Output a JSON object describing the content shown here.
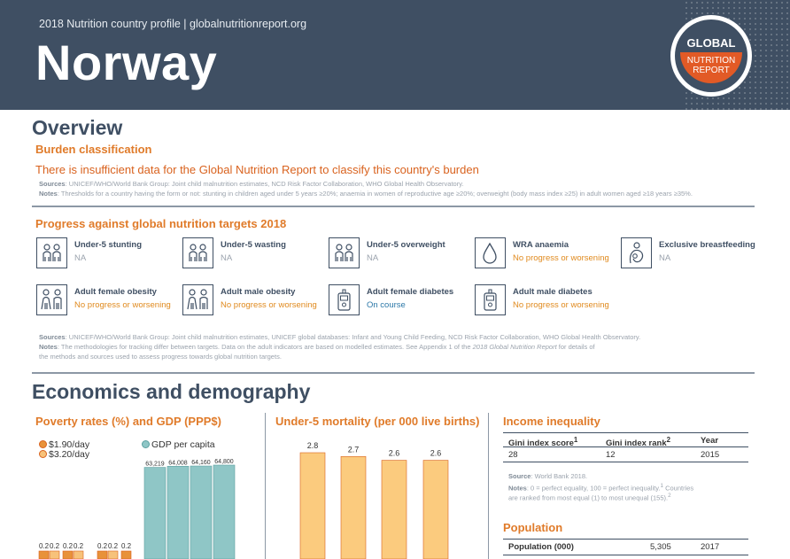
{
  "header": {
    "subtitle": "2018 Nutrition country profile  |  globalnutritionreport.org",
    "country": "Norway",
    "logo_top": "GLOBAL",
    "logo_mid": "NUTRITION",
    "logo_bot": "REPORT"
  },
  "overview": {
    "heading": "Overview",
    "burden_title": "Burden classification",
    "burden_text": "There is insufficient data for the Global Nutrition Report to classify this country's burden",
    "sources_label": "Sources",
    "sources_text": ": UNICEF/WHO/World Bank Group: Joint child malnutrition estimates, NCD Risk Factor Collaboration, WHO Global Health Observatory.",
    "notes_label": "Notes",
    "notes_text": ": Thresholds for a country having the form or not: stunting in children aged under 5 years ≥20%; anaemia in women of reproductive age ≥20%; overweight (body mass index ≥25) in adult women aged ≥18 years ≥35%."
  },
  "progress": {
    "title": "Progress against global nutrition targets 2018",
    "targets": [
      {
        "title": "Under-5 stunting",
        "status": "NA",
        "kind": "na",
        "icon": "children-icon"
      },
      {
        "title": "Under-5 wasting",
        "status": "NA",
        "kind": "na",
        "icon": "children-icon"
      },
      {
        "title": "Under-5 overweight",
        "status": "NA",
        "kind": "na",
        "icon": "children-icon"
      },
      {
        "title": "WRA anaemia",
        "status": "No progress or worsening",
        "kind": "no",
        "icon": "blood-drop-icon"
      },
      {
        "title": "Exclusive breastfeeding",
        "status": "NA",
        "kind": "na",
        "icon": "breastfeeding-icon"
      },
      {
        "title": "Adult female obesity",
        "status": "No progress or worsening",
        "kind": "no",
        "icon": "adults-icon"
      },
      {
        "title": "Adult male obesity",
        "status": "No progress or worsening",
        "kind": "no",
        "icon": "adults-icon"
      },
      {
        "title": "Adult female diabetes",
        "status": "On course",
        "kind": "on",
        "icon": "glucose-meter-icon"
      },
      {
        "title": "Adult male diabetes",
        "status": "No progress or worsening",
        "kind": "no",
        "icon": "glucose-meter-icon"
      }
    ],
    "sources_label": "Sources",
    "sources_text": ": UNICEF/WHO/World Bank Group: Joint child malnutrition estimates, UNICEF global databases: Infant and Young Child Feeding, NCD Risk Factor Collaboration, WHO Global Health Observatory.",
    "notes_label": "Notes",
    "notes_text_1": ": The methodologies for tracking differ between targets. Data on the adult indicators are based on modelled estimates. See Appendix 1 of the ",
    "notes_italic": "2018 Global Nutrition Report",
    "notes_text_2": " for details of",
    "notes_line2": "the methods and sources used to assess progress towards global nutrition targets."
  },
  "economics": {
    "heading": "Economics and demography",
    "poverty_title": "Poverty rates (%) and GDP (PPP$)",
    "mortality_title": "Under-5 mortality (per 000 live births)",
    "income_title": "Income inequality",
    "population_title": "Population"
  },
  "chart_data": [
    {
      "type": "bar",
      "title": "Poverty rates (%) and GDP (PPP$)",
      "series": [
        {
          "name": "$1.90/day",
          "values": [
            0.2,
            0.2,
            0.2,
            0.2,
            0.2,
            0.2,
            0.2
          ],
          "color": "#e8923a"
        },
        {
          "name": "$3.20/day",
          "values": [
            0.2,
            0.2,
            0.2,
            0.2,
            0.2,
            0.2,
            0.2
          ],
          "color": "#f7c27a"
        },
        {
          "name": "GDP per capita",
          "values": [
            63219,
            64008,
            64160,
            64800
          ],
          "color": "#8fc6c6"
        }
      ],
      "poverty_labels": [
        "0.2",
        "0.2",
        "0.2",
        "0.2",
        "0.2",
        "0.2",
        "0.2"
      ],
      "gdp_labels": [
        "63,219",
        "64,008",
        "64,160",
        "64,800"
      ]
    },
    {
      "type": "bar",
      "title": "Under-5 mortality (per 000 live births)",
      "values": [
        2.8,
        2.7,
        2.6,
        2.6
      ],
      "labels": [
        "2.8",
        "2.7",
        "2.6",
        "2.6"
      ],
      "color": "#fbcb7e"
    }
  ],
  "income_inequality": {
    "headers": [
      "Gini index score",
      "Gini index rank",
      "Year"
    ],
    "header_sups": [
      "1",
      "2",
      ""
    ],
    "values": [
      "28",
      "12",
      "2015"
    ],
    "source_label": "Source",
    "source_text": ": World Bank 2018.",
    "notes_label": "Notes",
    "notes_text": ": 0 = perfect equality, 100 = perfect inequality.",
    "notes_sup1": "1",
    "notes_text2": " Countries",
    "notes_line2": "are ranked from most equal (1) to most unequal (155).",
    "notes_sup2": "2"
  },
  "population": {
    "label": "Population (000)",
    "value": "5,305",
    "year": "2017"
  }
}
